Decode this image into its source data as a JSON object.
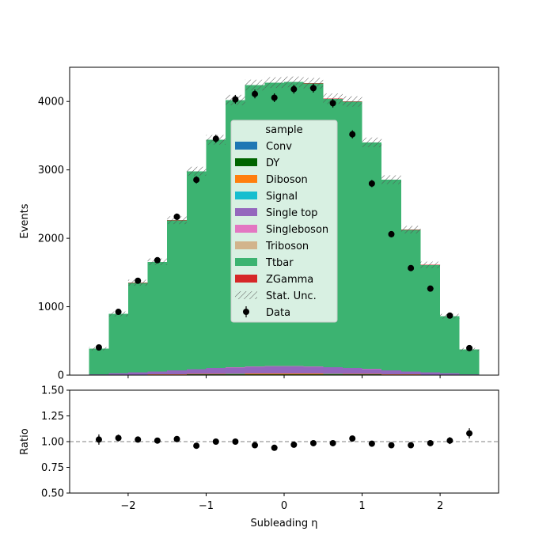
{
  "chart_data": [
    {
      "type": "bar",
      "stacked": true,
      "bin_edges": [
        -2.5,
        -2.25,
        -2.0,
        -1.75,
        -1.5,
        -1.25,
        -1.0,
        -0.75,
        -0.5,
        -0.25,
        0.0,
        0.25,
        0.5,
        0.75,
        1.0,
        1.25,
        1.5,
        1.75,
        2.0,
        2.25,
        2.5
      ],
      "ylabel": "Events",
      "xlim": [
        -2.75,
        2.75
      ],
      "ylim": [
        0,
        4500
      ],
      "yticks": [
        0,
        1000,
        2000,
        3000,
        4000
      ],
      "ytick_labels": [
        "0",
        "1000",
        "2000",
        "3000",
        "4000"
      ],
      "legend_title": "sample",
      "legend_position": "center",
      "series": [
        {
          "name": "Conv",
          "color": "#1f77b4",
          "values": [
            1,
            1,
            2,
            3,
            4,
            5,
            6,
            6,
            7,
            7,
            7,
            7,
            6,
            6,
            5,
            4,
            3,
            2,
            1,
            1
          ]
        },
        {
          "name": "DY",
          "color": "#006400",
          "values": [
            1,
            1,
            2,
            3,
            3,
            4,
            5,
            5,
            6,
            6,
            6,
            6,
            5,
            5,
            4,
            3,
            3,
            2,
            1,
            1
          ]
        },
        {
          "name": "Diboson",
          "color": "#ff7f0e",
          "values": [
            1,
            2,
            3,
            4,
            5,
            6,
            7,
            8,
            8,
            9,
            9,
            8,
            8,
            7,
            6,
            5,
            4,
            3,
            2,
            1
          ]
        },
        {
          "name": "Signal",
          "color": "#17becf",
          "values": [
            0,
            1,
            1,
            1,
            2,
            2,
            2,
            2,
            3,
            3,
            3,
            3,
            2,
            2,
            2,
            2,
            1,
            1,
            1,
            0
          ]
        },
        {
          "name": "Single top",
          "color": "#9467bd",
          "values": [
            10,
            22,
            33,
            41,
            55,
            70,
            82,
            90,
            100,
            105,
            105,
            100,
            92,
            84,
            72,
            56,
            41,
            33,
            22,
            10
          ]
        },
        {
          "name": "Singleboson",
          "color": "#e377c2",
          "values": [
            0,
            1,
            1,
            1,
            1,
            1,
            1,
            2,
            2,
            2,
            2,
            2,
            2,
            1,
            1,
            1,
            1,
            1,
            1,
            0
          ]
        },
        {
          "name": "Triboson",
          "color": "#d2b48c",
          "values": [
            0,
            0,
            0,
            1,
            1,
            1,
            1,
            1,
            1,
            1,
            1,
            1,
            1,
            1,
            1,
            1,
            1,
            0,
            0,
            0
          ]
        },
        {
          "name": "Ttbar",
          "color": "#3cb371",
          "values": [
            372,
            866,
            1308,
            1602,
            2193,
            2890,
            3335,
            3906,
            4112,
            4142,
            4152,
            4138,
            3924,
            3893,
            3311,
            2784,
            2071,
            1568,
            832,
            362
          ]
        },
        {
          "name": "ZGamma",
          "color": "#d62728",
          "values": [
            0,
            0,
            1,
            1,
            1,
            1,
            1,
            1,
            1,
            1,
            1,
            1,
            1,
            1,
            1,
            1,
            1,
            1,
            0,
            0
          ]
        }
      ],
      "stat_unc_label": "Stat. Unc.",
      "data": {
        "name": "Data",
        "x": [
          -2.375,
          -2.125,
          -1.875,
          -1.625,
          -1.375,
          -1.125,
          -0.875,
          -0.625,
          -0.375,
          -0.125,
          0.125,
          0.375,
          0.625,
          0.875,
          1.125,
          1.375,
          1.625,
          1.875,
          2.125,
          2.375
        ],
        "values": [
          405,
          925,
          1380,
          1680,
          2315,
          2855,
          3455,
          4030,
          4110,
          4055,
          4180,
          4195,
          3975,
          3520,
          2800,
          2060,
          1565,
          1265,
          870,
          395
        ]
      }
    },
    {
      "type": "scatter",
      "xlabel": "Subleading η",
      "ylabel": "Ratio",
      "xlim": [
        -2.75,
        2.75
      ],
      "ylim": [
        0.5,
        1.5
      ],
      "xticks": [
        -2,
        -1,
        0,
        1,
        2
      ],
      "xtick_labels": [
        "−2",
        "−1",
        "0",
        "1",
        "2"
      ],
      "yticks": [
        0.5,
        0.75,
        1.0,
        1.25,
        1.5
      ],
      "ytick_labels": [
        "0.50",
        "0.75",
        "1.00",
        "1.25",
        "1.50"
      ],
      "reference_line": 1.0,
      "x": [
        -2.375,
        -2.125,
        -1.875,
        -1.625,
        -1.375,
        -1.125,
        -0.875,
        -0.625,
        -0.375,
        -0.125,
        0.125,
        0.375,
        0.625,
        0.875,
        1.125,
        1.375,
        1.625,
        1.875,
        2.125,
        2.375
      ],
      "values": [
        1.02,
        1.035,
        1.02,
        1.01,
        1.025,
        0.96,
        1.0,
        1.0,
        0.965,
        0.94,
        0.97,
        0.985,
        0.985,
        1.03,
        0.98,
        0.965,
        0.965,
        0.985,
        1.01,
        1.08
      ],
      "errors": [
        0.05,
        0.033,
        0.027,
        0.025,
        0.021,
        0.019,
        0.017,
        0.016,
        0.016,
        0.016,
        0.016,
        0.016,
        0.016,
        0.017,
        0.019,
        0.022,
        0.025,
        0.028,
        0.034,
        0.05
      ]
    }
  ]
}
